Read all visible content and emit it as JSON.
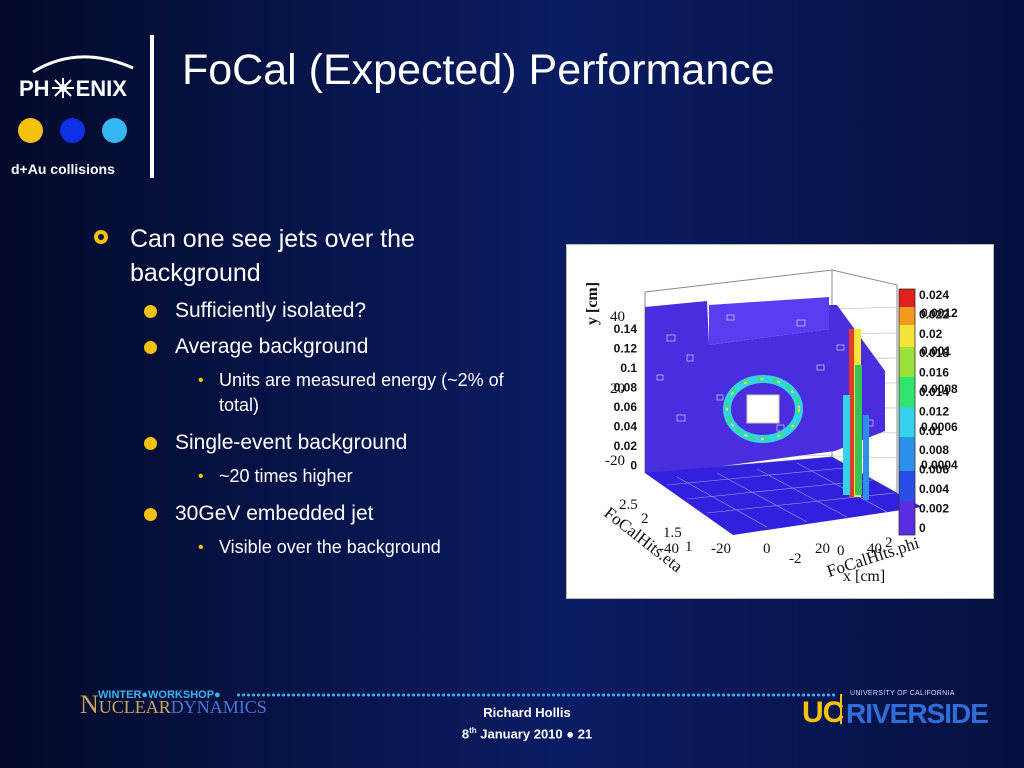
{
  "logo": {
    "wordmark_left": "PH",
    "wordmark_right": "ENIX",
    "subtitle": "d+Au collisions",
    "dot_colors": [
      "#f4c20d",
      "#1030e8",
      "#37b6f4"
    ]
  },
  "slide": {
    "title": "FoCal (Expected) Performance"
  },
  "bullets": {
    "b1": "Can one see jets over the background",
    "b1_1": "Sufficiently isolated?",
    "b1_2": "Average background",
    "b1_2_1": "Units are measured energy (~2% of total)",
    "b1_3": "Single-event background",
    "b1_3_1": "~20 times higher",
    "b1_4": "30GeV embedded jet",
    "b1_4_1": "Visible over the background"
  },
  "figure": {
    "x_axis_title": "FoCalHits.phi",
    "x_axis_unit": "x [cm]",
    "y_axis_title": "FoCalHits.eta",
    "y_axis_unit": "y [cm]",
    "left_ticks": [
      "0.14",
      "0.12",
      "0.1",
      "0.08",
      "0.06",
      "0.04",
      "0.02",
      "0"
    ],
    "left_overlap_ticks": [
      "40",
      "20",
      "-20"
    ],
    "colorbar_labels": [
      "0.024",
      "0.022",
      "0.02",
      "0.018",
      "0.016",
      "0.014",
      "0.012",
      "0.01",
      "0.008",
      "0.006",
      "0.004",
      "0.002",
      "0"
    ],
    "colorbar_overlap_labels": [
      "0.0012",
      "0.001",
      "0.0008",
      "0.0006",
      "0.0004"
    ],
    "eta_ticks": [
      "2.5",
      "2",
      "1.5",
      "1"
    ],
    "phi_ticks": [
      "-2",
      "0",
      "2"
    ],
    "x_cm_ticks": [
      "-40",
      "-20",
      "0",
      "20",
      "40"
    ]
  },
  "footer": {
    "workshop_label": "WINTER●WORKSHOP●",
    "nuclear_first": "N",
    "nuclear_rest": "UCLEAR",
    "dynamics_first": "D",
    "dynamics_rest": "YNAMICS",
    "presenter": "Richard Hollis",
    "date_day": "8",
    "date_sup": "th",
    "date_rest": " January 2010 ● 21",
    "ucr_uc": "UC",
    "ucr_riverside": "RIVERSIDE",
    "ucr_univ": "UNIVERSITY OF CALIFORNIA"
  }
}
